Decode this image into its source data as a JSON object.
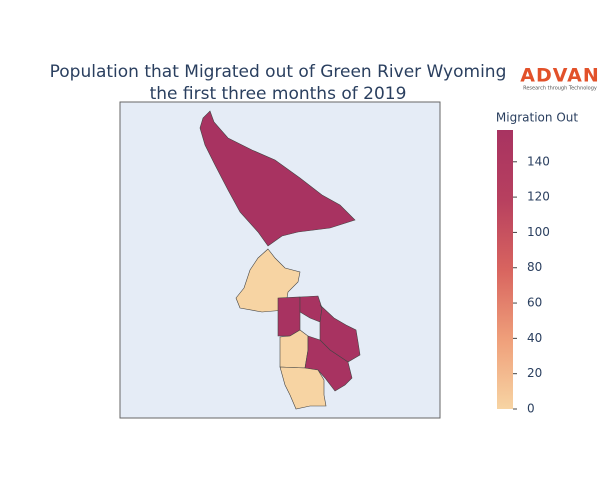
{
  "chart_data": {
    "type": "choropleth",
    "title": "Population that Migrated out of Green River Wyoming",
    "subtitle": "the first three months of 2019",
    "logo": "ADVAN",
    "logo_tagline": "Research through Technology",
    "colorbar_title": "Migration Out",
    "values": [
      158,
      0,
      158,
      158,
      158,
      0,
      158,
      0
    ],
    "colorscale": [
      "#f7d4a3",
      "#ef9f7a",
      "#d8645f",
      "#b7405f",
      "#a83361"
    ],
    "ylim": [
      0,
      158
    ],
    "yticks": [
      0,
      20,
      40,
      60,
      80,
      100,
      120,
      140
    ],
    "background": "#e5ecf6"
  }
}
